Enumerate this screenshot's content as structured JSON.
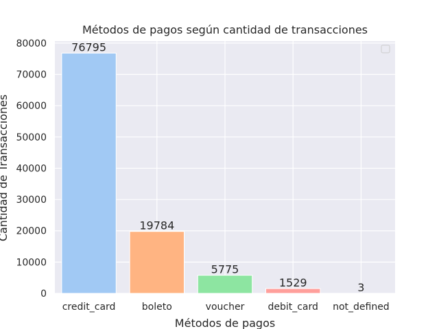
{
  "chart_data": {
    "type": "bar",
    "title": "Métodos de pagos según cantidad de transacciones",
    "xlabel": "Métodos de pagos",
    "ylabel": "Cantidad de Transacciones",
    "categories": [
      "credit_card",
      "boleto",
      "voucher",
      "debit_card",
      "not_defined"
    ],
    "values": [
      76795,
      19784,
      5775,
      1529,
      3
    ],
    "value_labels": [
      "76795",
      "19784",
      "5775",
      "1529",
      "3"
    ],
    "colors": [
      "#a1c9f4",
      "#ffb482",
      "#8de5a1",
      "#ff9f9b",
      "#d0bbff"
    ],
    "ylim": [
      0,
      80635
    ],
    "yticks": [
      0,
      10000,
      20000,
      30000,
      40000,
      50000,
      60000,
      70000,
      80000
    ],
    "ytick_labels": [
      "0",
      "10000",
      "20000",
      "30000",
      "40000",
      "50000",
      "60000",
      "70000",
      "80000"
    ],
    "grid": true,
    "legend": "top-right (empty)",
    "plot_background": "#eaeaf2",
    "grid_color": "#ffffff"
  }
}
